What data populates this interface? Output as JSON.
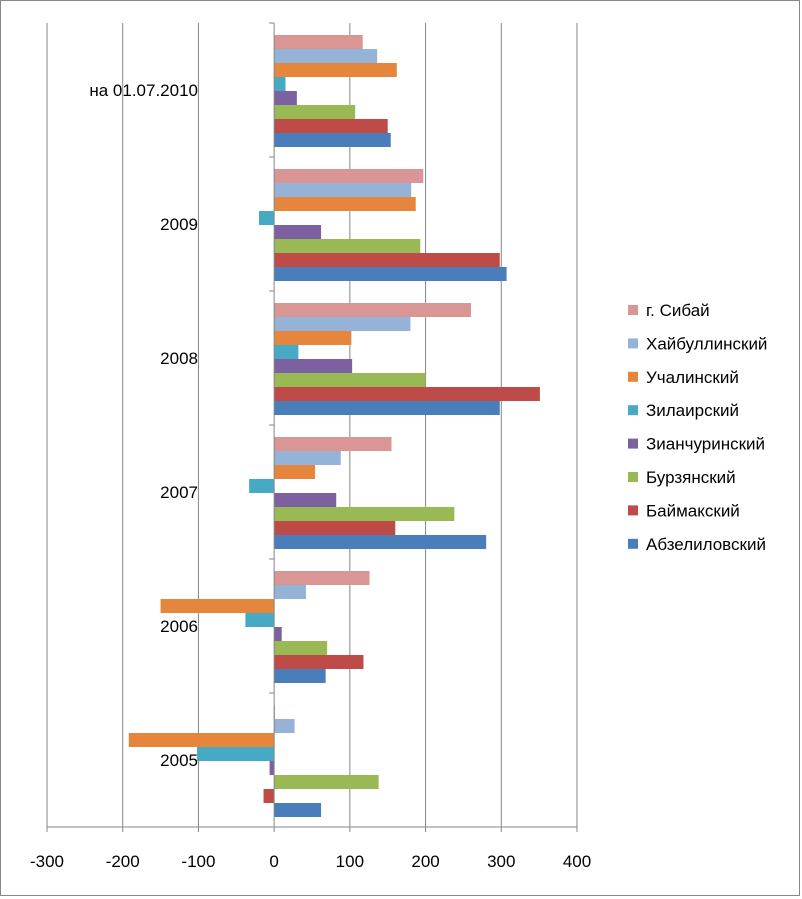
{
  "chart_data": {
    "type": "bar",
    "orientation": "horizontal",
    "categories": [
      "2005",
      "2006",
      "2007",
      "2008",
      "2009",
      "на 01.07.2010"
    ],
    "xlim": [
      -300,
      400
    ],
    "xticks": [
      "-300",
      "-200",
      "-100",
      "0",
      "100",
      "200",
      "300",
      "400"
    ],
    "grid": true,
    "legend_position": "right",
    "series": [
      {
        "name": "Абзелиловский",
        "color": "#4A7EBB",
        "values": [
          62,
          68,
          280,
          298,
          307,
          154
        ]
      },
      {
        "name": "Баймакский",
        "color": "#BE4B48",
        "values": [
          -14,
          118,
          160,
          351,
          298,
          150
        ]
      },
      {
        "name": "Бурзянский",
        "color": "#98B954",
        "values": [
          138,
          70,
          238,
          200,
          193,
          107
        ]
      },
      {
        "name": "Зианчуринский",
        "color": "#7D60A0",
        "values": [
          -6,
          10,
          82,
          103,
          62,
          30
        ]
      },
      {
        "name": "Зилаирский",
        "color": "#46AAC5",
        "values": [
          -102,
          -38,
          -33,
          32,
          -20,
          15
        ]
      },
      {
        "name": "Учалинский",
        "color": "#E6863C",
        "values": [
          -192,
          -150,
          54,
          102,
          187,
          162
        ]
      },
      {
        "name": "Хайбуллинский",
        "color": "#95B3D7",
        "values": [
          27,
          42,
          88,
          180,
          181,
          136
        ]
      },
      {
        "name": "г. Сибай",
        "color": "#D99694",
        "values": [
          1,
          126,
          155,
          260,
          197,
          117
        ]
      }
    ]
  }
}
